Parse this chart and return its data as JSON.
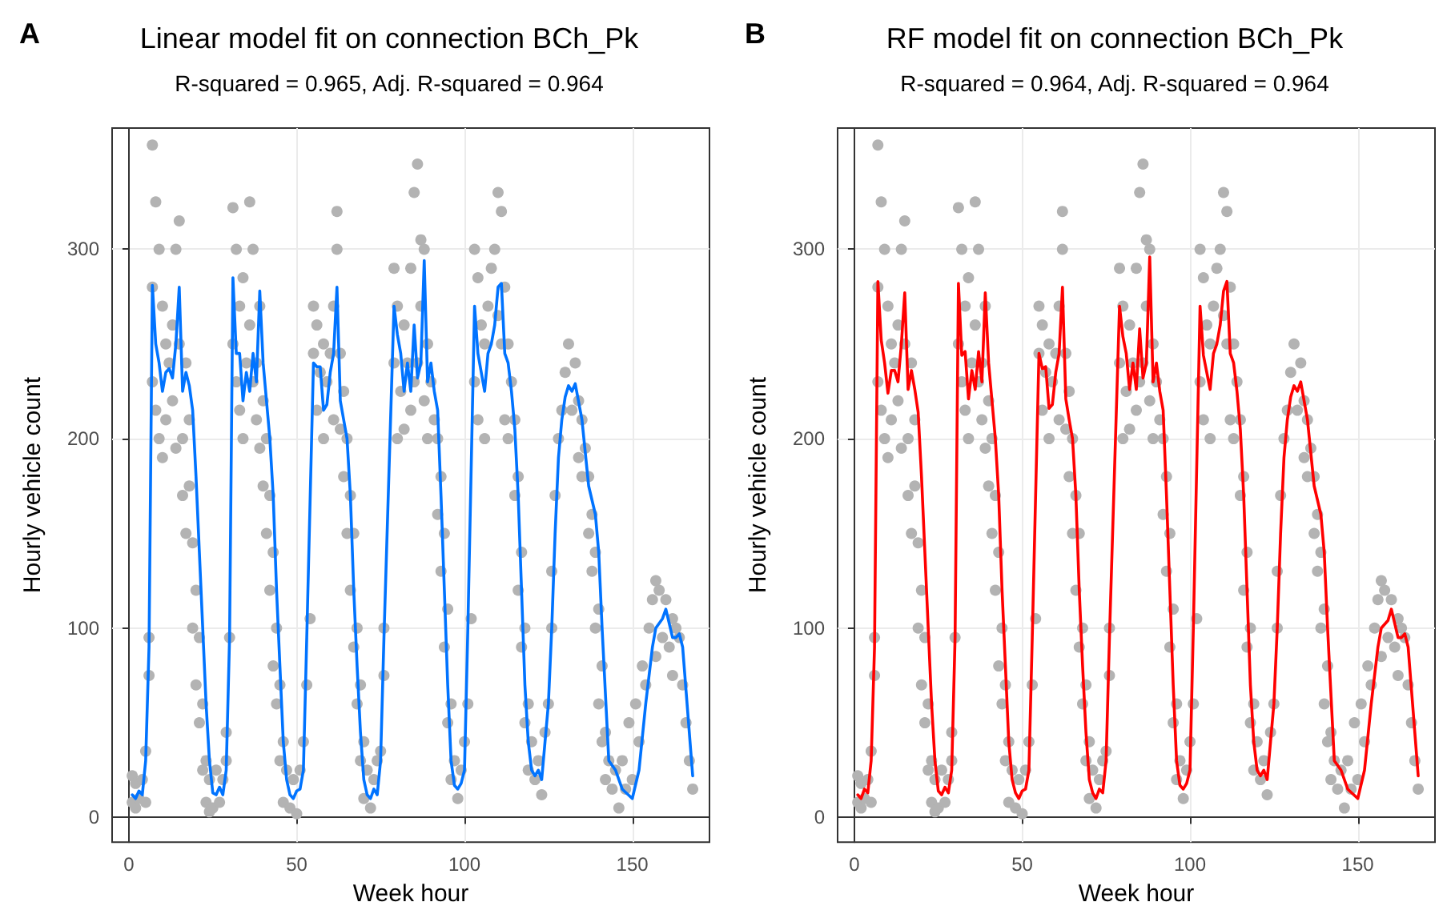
{
  "chart_data": [
    {
      "type": "scatter",
      "title": "Linear model fit on connection BCh_Pk",
      "subtitle": "R-squared = 0.965, Adj. R-squared = 0.964",
      "xlabel": "Week hour",
      "ylabel": "Hourly vehicle count",
      "annotations": [
        "A"
      ],
      "xlim": [
        -5,
        173
      ],
      "ylim": [
        -13,
        364
      ],
      "xticks": [
        0,
        50,
        100,
        150
      ],
      "yticks": [
        0,
        100,
        200,
        300
      ],
      "grid": true,
      "series": [
        {
          "marker": "circle",
          "color": "#b3b3b3",
          "x": [
            1,
            1,
            2,
            2,
            3,
            4,
            5,
            5,
            6,
            6,
            7,
            7,
            7,
            8,
            8,
            9,
            9,
            10,
            10,
            11,
            11,
            12,
            13,
            13,
            14,
            14,
            15,
            15,
            16,
            16,
            17,
            17,
            18,
            18,
            19,
            19,
            20,
            20,
            21,
            21,
            22,
            22,
            23,
            23,
            24,
            24,
            25,
            26,
            27,
            28,
            29,
            29,
            30,
            31,
            31,
            32,
            32,
            33,
            33,
            34,
            34,
            35,
            36,
            36,
            37,
            37,
            38,
            38,
            39,
            39,
            40,
            40,
            41,
            41,
            42,
            42,
            43,
            43,
            44,
            44,
            45,
            45,
            46,
            46,
            47,
            48,
            49,
            50,
            51,
            52,
            53,
            54,
            55,
            55,
            56,
            56,
            57,
            58,
            58,
            59,
            60,
            61,
            61,
            62,
            62,
            63,
            63,
            64,
            64,
            65,
            65,
            66,
            66,
            67,
            67,
            68,
            68,
            69,
            69,
            70,
            70,
            71,
            72,
            73,
            74,
            75,
            76,
            76,
            79,
            79,
            80,
            80,
            81,
            82,
            82,
            83,
            84,
            84,
            85,
            85,
            86,
            86,
            87,
            87,
            88,
            88,
            89,
            89,
            90,
            91,
            92,
            92,
            93,
            93,
            94,
            94,
            95,
            95,
            96,
            96,
            97,
            98,
            99,
            100,
            101,
            102,
            103,
            103,
            104,
            104,
            105,
            106,
            106,
            107,
            108,
            109,
            110,
            110,
            111,
            111,
            112,
            112,
            113,
            113,
            114,
            115,
            115,
            116,
            116,
            117,
            117,
            118,
            118,
            119,
            119,
            120,
            121,
            122,
            123,
            124,
            125,
            126,
            126,
            127,
            128,
            129,
            130,
            131,
            132,
            133,
            134,
            134,
            135,
            135,
            136,
            137,
            137,
            138,
            138,
            139,
            139,
            140,
            140,
            141,
            141,
            142,
            142,
            143,
            144,
            145,
            146,
            147,
            148,
            149,
            150,
            151,
            152,
            153,
            154,
            155,
            156,
            157,
            157,
            158,
            159,
            160,
            161,
            162,
            162,
            163,
            164,
            165,
            166,
            167,
            168
          ],
          "values": [
            8,
            22,
            5,
            18,
            10,
            20,
            8,
            35,
            75,
            95,
            355,
            230,
            280,
            325,
            215,
            300,
            200,
            270,
            190,
            250,
            210,
            240,
            220,
            260,
            300,
            195,
            315,
            250,
            200,
            170,
            240,
            150,
            210,
            175,
            145,
            100,
            120,
            70,
            95,
            50,
            60,
            25,
            30,
            8,
            20,
            3,
            5,
            25,
            8,
            20,
            30,
            45,
            95,
            322,
            250,
            300,
            230,
            270,
            215,
            285,
            200,
            240,
            325,
            260,
            300,
            230,
            240,
            210,
            270,
            195,
            220,
            175,
            200,
            150,
            170,
            120,
            140,
            80,
            100,
            60,
            70,
            30,
            40,
            8,
            25,
            5,
            20,
            2,
            25,
            40,
            70,
            105,
            245,
            270,
            215,
            260,
            235,
            200,
            250,
            230,
            245,
            270,
            210,
            320,
            300,
            245,
            205,
            225,
            180,
            200,
            150,
            170,
            120,
            150,
            90,
            100,
            60,
            70,
            30,
            40,
            10,
            25,
            5,
            20,
            30,
            35,
            75,
            100,
            290,
            240,
            270,
            200,
            225,
            260,
            205,
            240,
            290,
            215,
            330,
            230,
            345,
            240,
            305,
            270,
            300,
            220,
            250,
            200,
            230,
            210,
            200,
            160,
            180,
            130,
            150,
            90,
            110,
            50,
            60,
            20,
            30,
            10,
            25,
            40,
            60,
            105,
            300,
            230,
            285,
            210,
            260,
            250,
            200,
            270,
            290,
            300,
            330,
            265,
            320,
            250,
            280,
            210,
            250,
            200,
            230,
            210,
            170,
            180,
            120,
            140,
            90,
            100,
            50,
            60,
            25,
            40,
            20,
            30,
            12,
            45,
            60,
            100,
            130,
            170,
            200,
            215,
            235,
            250,
            215,
            240,
            220,
            190,
            210,
            180,
            195,
            180,
            150,
            160,
            130,
            140,
            100,
            110,
            60,
            80,
            40,
            45,
            20,
            30,
            15,
            25,
            5,
            30,
            15,
            50,
            20,
            60,
            40,
            80,
            70,
            100,
            115,
            125,
            85,
            120,
            95,
            115,
            90,
            105,
            75,
            100,
            95,
            70,
            50,
            30,
            15
          ]
        },
        {
          "type": "line",
          "marker": "none",
          "line_style": "solid",
          "color": "#0073ff",
          "x": [
            1,
            2,
            3,
            4,
            5,
            6,
            7,
            8,
            9,
            10,
            11,
            12,
            13,
            14,
            15,
            16,
            17,
            18,
            19,
            20,
            21,
            22,
            23,
            24,
            25,
            26,
            27,
            28,
            29,
            30,
            31,
            32,
            33,
            34,
            35,
            36,
            37,
            38,
            39,
            40,
            41,
            42,
            43,
            44,
            45,
            46,
            47,
            48,
            49,
            50,
            51,
            52,
            53,
            55,
            56,
            57,
            58,
            59,
            60,
            61,
            62,
            63,
            64,
            65,
            66,
            67,
            68,
            69,
            70,
            71,
            72,
            73,
            74,
            75,
            76,
            79,
            80,
            81,
            82,
            83,
            84,
            85,
            86,
            87,
            88,
            89,
            90,
            91,
            92,
            93,
            94,
            95,
            96,
            97,
            98,
            99,
            100,
            101,
            103,
            104,
            105,
            106,
            107,
            108,
            109,
            110,
            111,
            112,
            113,
            114,
            115,
            116,
            117,
            118,
            119,
            120,
            121,
            122,
            123,
            124,
            125,
            126,
            127,
            128,
            129,
            130,
            131,
            132,
            133,
            135,
            137,
            139,
            140,
            141,
            143,
            145,
            147,
            150,
            152,
            154,
            156,
            157,
            159,
            160,
            162,
            163,
            164,
            165,
            168
          ],
          "values": [
            12,
            10,
            14,
            12,
            30,
            90,
            281,
            250,
            240,
            225,
            235,
            237,
            232,
            250,
            280,
            225,
            235,
            228,
            215,
            180,
            140,
            100,
            60,
            30,
            13,
            12,
            16,
            12,
            25,
            95,
            285,
            245,
            245,
            220,
            235,
            225,
            245,
            230,
            278,
            240,
            220,
            200,
            170,
            120,
            80,
            40,
            20,
            12,
            10,
            14,
            15,
            25,
            95,
            240,
            238,
            238,
            215,
            218,
            235,
            245,
            280,
            220,
            210,
            200,
            170,
            120,
            80,
            45,
            20,
            12,
            10,
            15,
            12,
            30,
            95,
            270,
            255,
            245,
            225,
            240,
            225,
            260,
            232,
            240,
            294,
            230,
            240,
            225,
            215,
            170,
            120,
            70,
            30,
            17,
            15,
            18,
            25,
            100,
            270,
            245,
            235,
            225,
            245,
            250,
            260,
            280,
            282,
            245,
            240,
            225,
            205,
            170,
            120,
            70,
            40,
            25,
            22,
            25,
            20,
            40,
            60,
            100,
            150,
            190,
            210,
            222,
            228,
            225,
            229,
            210,
            175,
            160,
            140,
            100,
            30,
            25,
            15,
            10,
            25,
            60,
            90,
            100,
            105,
            110,
            95,
            95,
            97,
            90,
            22
          ]
        }
      ]
    },
    {
      "type": "scatter",
      "title": "RF model fit on connection BCh_Pk",
      "subtitle": "R-squared = 0.964, Adj. R-squared = 0.964",
      "xlabel": "Week hour",
      "ylabel": "Hourly vehicle count",
      "annotations": [
        "B"
      ],
      "xlim": [
        -5,
        173
      ],
      "ylim": [
        -13,
        364
      ],
      "xticks": [
        0,
        50,
        100,
        150
      ],
      "yticks": [
        0,
        100,
        200,
        300
      ],
      "grid": true,
      "series": [
        {
          "marker": "circle",
          "color": "#b3b3b3",
          "x": [
            1,
            1,
            2,
            2,
            3,
            4,
            5,
            5,
            6,
            6,
            7,
            7,
            7,
            8,
            8,
            9,
            9,
            10,
            10,
            11,
            11,
            12,
            13,
            13,
            14,
            14,
            15,
            15,
            16,
            16,
            17,
            17,
            18,
            18,
            19,
            19,
            20,
            20,
            21,
            21,
            22,
            22,
            23,
            23,
            24,
            24,
            25,
            26,
            27,
            28,
            29,
            29,
            30,
            31,
            31,
            32,
            32,
            33,
            33,
            34,
            34,
            35,
            36,
            36,
            37,
            37,
            38,
            38,
            39,
            39,
            40,
            40,
            41,
            41,
            42,
            42,
            43,
            43,
            44,
            44,
            45,
            45,
            46,
            46,
            47,
            48,
            49,
            50,
            51,
            52,
            53,
            54,
            55,
            55,
            56,
            56,
            57,
            58,
            58,
            59,
            60,
            61,
            61,
            62,
            62,
            63,
            63,
            64,
            64,
            65,
            65,
            66,
            66,
            67,
            67,
            68,
            68,
            69,
            69,
            70,
            70,
            71,
            72,
            73,
            74,
            75,
            76,
            76,
            79,
            79,
            80,
            80,
            81,
            82,
            82,
            83,
            84,
            84,
            85,
            85,
            86,
            86,
            87,
            87,
            88,
            88,
            89,
            89,
            90,
            91,
            92,
            92,
            93,
            93,
            94,
            94,
            95,
            95,
            96,
            96,
            97,
            98,
            99,
            100,
            101,
            102,
            103,
            103,
            104,
            104,
            105,
            106,
            106,
            107,
            108,
            109,
            110,
            110,
            111,
            111,
            112,
            112,
            113,
            113,
            114,
            115,
            115,
            116,
            116,
            117,
            117,
            118,
            118,
            119,
            119,
            120,
            121,
            122,
            123,
            124,
            125,
            126,
            126,
            127,
            128,
            129,
            130,
            131,
            132,
            133,
            134,
            134,
            135,
            135,
            136,
            137,
            137,
            138,
            138,
            139,
            139,
            140,
            140,
            141,
            141,
            142,
            142,
            143,
            144,
            145,
            146,
            147,
            148,
            149,
            150,
            151,
            152,
            153,
            154,
            155,
            156,
            157,
            157,
            158,
            159,
            160,
            161,
            162,
            162,
            163,
            164,
            165,
            166,
            167,
            168
          ],
          "values": [
            8,
            22,
            5,
            18,
            10,
            20,
            8,
            35,
            75,
            95,
            355,
            230,
            280,
            325,
            215,
            300,
            200,
            270,
            190,
            250,
            210,
            240,
            220,
            260,
            300,
            195,
            315,
            250,
            200,
            170,
            240,
            150,
            210,
            175,
            145,
            100,
            120,
            70,
            95,
            50,
            60,
            25,
            30,
            8,
            20,
            3,
            5,
            25,
            8,
            20,
            30,
            45,
            95,
            322,
            250,
            300,
            230,
            270,
            215,
            285,
            200,
            240,
            325,
            260,
            300,
            230,
            240,
            210,
            270,
            195,
            220,
            175,
            200,
            150,
            170,
            120,
            140,
            80,
            100,
            60,
            70,
            30,
            40,
            8,
            25,
            5,
            20,
            2,
            25,
            40,
            70,
            105,
            245,
            270,
            215,
            260,
            235,
            200,
            250,
            230,
            245,
            270,
            210,
            320,
            300,
            245,
            205,
            225,
            180,
            200,
            150,
            170,
            120,
            150,
            90,
            100,
            60,
            70,
            30,
            40,
            10,
            25,
            5,
            20,
            30,
            35,
            75,
            100,
            290,
            240,
            270,
            200,
            225,
            260,
            205,
            240,
            290,
            215,
            330,
            230,
            345,
            240,
            305,
            270,
            300,
            220,
            250,
            200,
            230,
            210,
            200,
            160,
            180,
            130,
            150,
            90,
            110,
            50,
            60,
            20,
            30,
            10,
            25,
            40,
            60,
            105,
            300,
            230,
            285,
            210,
            260,
            250,
            200,
            270,
            290,
            300,
            330,
            265,
            320,
            250,
            280,
            210,
            250,
            200,
            230,
            210,
            170,
            180,
            120,
            140,
            90,
            100,
            50,
            60,
            25,
            40,
            20,
            30,
            12,
            45,
            60,
            100,
            130,
            170,
            200,
            215,
            235,
            250,
            215,
            240,
            220,
            190,
            210,
            180,
            195,
            180,
            150,
            160,
            130,
            140,
            100,
            110,
            60,
            80,
            40,
            45,
            20,
            30,
            15,
            25,
            5,
            30,
            15,
            50,
            20,
            60,
            40,
            80,
            70,
            100,
            115,
            125,
            85,
            120,
            95,
            115,
            90,
            105,
            75,
            100,
            95,
            70,
            50,
            30,
            15
          ]
        },
        {
          "type": "line",
          "marker": "none",
          "line_style": "solid",
          "color": "#ff0000",
          "x": [
            1,
            2,
            3,
            4,
            5,
            6,
            7,
            8,
            9,
            10,
            11,
            12,
            13,
            14,
            15,
            16,
            17,
            18,
            19,
            20,
            21,
            22,
            23,
            24,
            25,
            26,
            27,
            28,
            29,
            30,
            31,
            32,
            33,
            34,
            35,
            36,
            37,
            38,
            39,
            40,
            41,
            42,
            43,
            44,
            45,
            46,
            47,
            48,
            49,
            50,
            51,
            52,
            53,
            55,
            56,
            57,
            58,
            59,
            60,
            61,
            62,
            63,
            64,
            65,
            66,
            67,
            68,
            69,
            70,
            71,
            72,
            73,
            74,
            75,
            76,
            79,
            80,
            81,
            82,
            83,
            84,
            85,
            86,
            87,
            88,
            89,
            90,
            91,
            92,
            93,
            94,
            95,
            96,
            97,
            98,
            99,
            100,
            101,
            103,
            104,
            105,
            106,
            107,
            108,
            109,
            110,
            111,
            112,
            113,
            114,
            115,
            116,
            117,
            118,
            119,
            120,
            121,
            122,
            123,
            124,
            125,
            126,
            127,
            128,
            129,
            130,
            131,
            132,
            133,
            135,
            137,
            139,
            140,
            141,
            143,
            145,
            147,
            150,
            152,
            154,
            156,
            157,
            159,
            160,
            162,
            163,
            164,
            165,
            168
          ],
          "values": [
            12,
            10,
            15,
            13,
            30,
            90,
            283,
            252,
            240,
            224,
            236,
            236,
            230,
            250,
            277,
            226,
            236,
            226,
            214,
            180,
            140,
            100,
            60,
            30,
            14,
            12,
            16,
            13,
            25,
            95,
            282,
            244,
            246,
            221,
            236,
            226,
            246,
            230,
            277,
            240,
            220,
            200,
            170,
            120,
            80,
            40,
            20,
            13,
            10,
            14,
            15,
            25,
            95,
            245,
            237,
            238,
            216,
            218,
            235,
            245,
            280,
            221,
            210,
            200,
            170,
            120,
            80,
            45,
            20,
            13,
            10,
            15,
            13,
            30,
            95,
            270,
            254,
            245,
            226,
            240,
            226,
            258,
            232,
            240,
            296,
            230,
            240,
            225,
            215,
            170,
            120,
            70,
            30,
            17,
            15,
            18,
            25,
            100,
            270,
            244,
            235,
            226,
            245,
            250,
            260,
            278,
            283,
            245,
            240,
            225,
            205,
            170,
            120,
            70,
            40,
            25,
            22,
            25,
            20,
            40,
            60,
            100,
            150,
            190,
            210,
            222,
            228,
            225,
            230,
            210,
            175,
            160,
            140,
            100,
            30,
            25,
            15,
            10,
            25,
            60,
            90,
            100,
            104,
            110,
            95,
            95,
            97,
            90,
            22
          ]
        }
      ]
    }
  ]
}
